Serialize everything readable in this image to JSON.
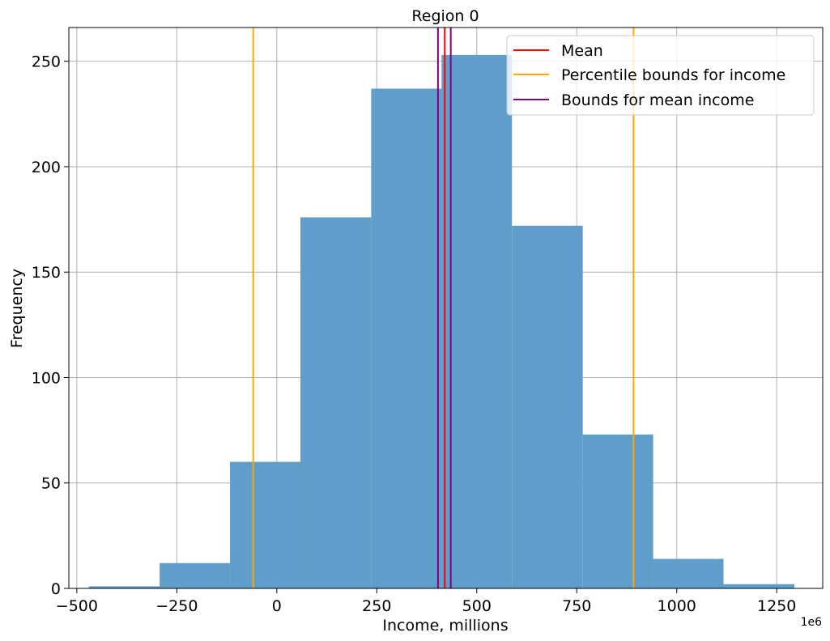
{
  "chart_data": {
    "type": "bar",
    "subtype": "histogram",
    "title": "Region 0",
    "xlabel": "Income, millions",
    "ylabel": "Frequency",
    "x_offset_label": "1e6",
    "xlim": [
      -520,
      1365
    ],
    "ylim": [
      0,
      266
    ],
    "x_ticks": [
      -500,
      -250,
      0,
      250,
      500,
      750,
      1000,
      1250
    ],
    "x_tick_labels": [
      "−500",
      "−250",
      "0",
      "250",
      "500",
      "750",
      "1000",
      "1250"
    ],
    "y_ticks": [
      0,
      50,
      100,
      150,
      200,
      250
    ],
    "y_tick_labels": [
      "0",
      "50",
      "100",
      "150",
      "200",
      "250"
    ],
    "grid": true,
    "bar_color": "#5f9ecb",
    "bins": [
      {
        "x0": -470,
        "x1": -293,
        "count": 1
      },
      {
        "x0": -293,
        "x1": -117,
        "count": 12
      },
      {
        "x0": -117,
        "x1": 59,
        "count": 60
      },
      {
        "x0": 59,
        "x1": 236,
        "count": 176
      },
      {
        "x0": 236,
        "x1": 412,
        "count": 237
      },
      {
        "x0": 412,
        "x1": 588,
        "count": 253
      },
      {
        "x0": 588,
        "x1": 765,
        "count": 172
      },
      {
        "x0": 765,
        "x1": 941,
        "count": 73
      },
      {
        "x0": 941,
        "x1": 1117,
        "count": 14
      },
      {
        "x0": 1117,
        "x1": 1294,
        "count": 2
      }
    ],
    "vlines": [
      {
        "series": "Percentile bounds for income",
        "x": -59,
        "color": "#ffa500"
      },
      {
        "series": "Percentile bounds for income",
        "x": 892,
        "color": "#ffa500"
      },
      {
        "series": "Bounds for mean income",
        "x": 403,
        "color": "#800080"
      },
      {
        "series": "Bounds for mean income",
        "x": 435,
        "color": "#800080"
      },
      {
        "series": "Mean",
        "x": 420,
        "color": "#ff0000"
      }
    ],
    "legend": {
      "position": "top-right",
      "entries": [
        {
          "label": "Mean",
          "color": "#ff0000"
        },
        {
          "label": "Percentile bounds for income",
          "color": "#ffa500"
        },
        {
          "label": "Bounds for mean income",
          "color": "#800080"
        }
      ]
    }
  }
}
